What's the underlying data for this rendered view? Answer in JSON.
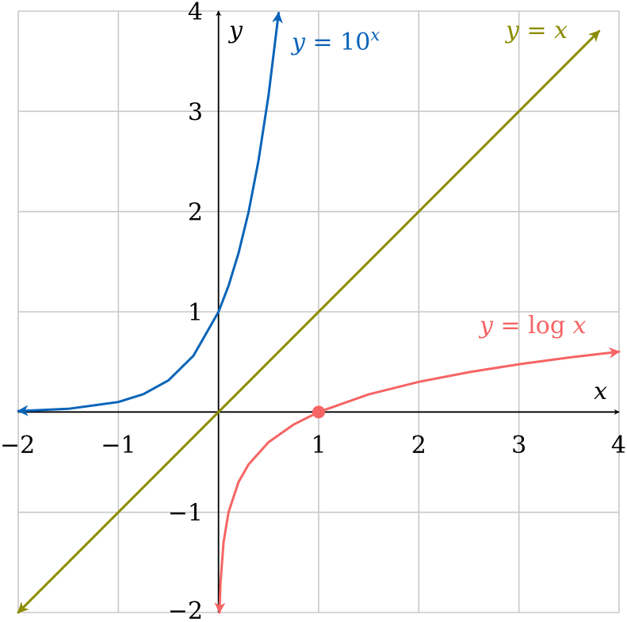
{
  "chart_data": {
    "type": "line",
    "xlim": [
      -2,
      4
    ],
    "ylim": [
      -2,
      4
    ],
    "grid": true,
    "x_ticks": [
      -2,
      -1,
      1,
      2,
      3,
      4
    ],
    "y_ticks": [
      -2,
      -1,
      1,
      2,
      3,
      4
    ],
    "x_tick_labels": [
      "−2",
      "−1",
      "1",
      "2",
      "3",
      "4"
    ],
    "y_tick_labels": [
      "−2",
      "−1",
      "1",
      "2",
      "3",
      "4"
    ],
    "xlabel": "x",
    "ylabel": "y",
    "series": [
      {
        "name": "y = 10^x",
        "label_parts": {
          "lhs": "y",
          "eq": " = ",
          "base": "10",
          "exp": "x"
        },
        "color": "#0a64b9",
        "x": [
          -2.0,
          -1.5,
          -1.0,
          -0.75,
          -0.5,
          -0.25,
          0.0,
          0.1,
          0.2,
          0.3,
          0.4,
          0.5,
          0.6
        ],
        "y": [
          0.01,
          0.032,
          0.1,
          0.178,
          0.316,
          0.562,
          1.0,
          1.259,
          1.585,
          1.995,
          2.512,
          3.162,
          3.981
        ]
      },
      {
        "name": "y = x",
        "label_parts": {
          "lhs": "y",
          "eq": " = ",
          "rhs": "x"
        },
        "color": "#8c8c00",
        "x": [
          -2,
          3.8
        ],
        "y": [
          -2,
          3.8
        ]
      },
      {
        "name": "y = log x",
        "label_parts": {
          "lhs": "y",
          "eq": " = ",
          "fn": "log ",
          "arg": "x"
        },
        "color": "#f66464",
        "x": [
          0.01,
          0.02,
          0.05,
          0.1,
          0.2,
          0.3,
          0.5,
          0.75,
          1.0,
          1.5,
          2.0,
          2.5,
          3.0,
          3.5,
          4.0
        ],
        "y": [
          -2.0,
          -1.699,
          -1.301,
          -1.0,
          -0.699,
          -0.523,
          -0.301,
          -0.125,
          0.0,
          0.176,
          0.301,
          0.398,
          0.477,
          0.544,
          0.602
        ]
      }
    ],
    "points": [
      {
        "x": 1,
        "y": 0,
        "color": "#f66464"
      }
    ]
  }
}
